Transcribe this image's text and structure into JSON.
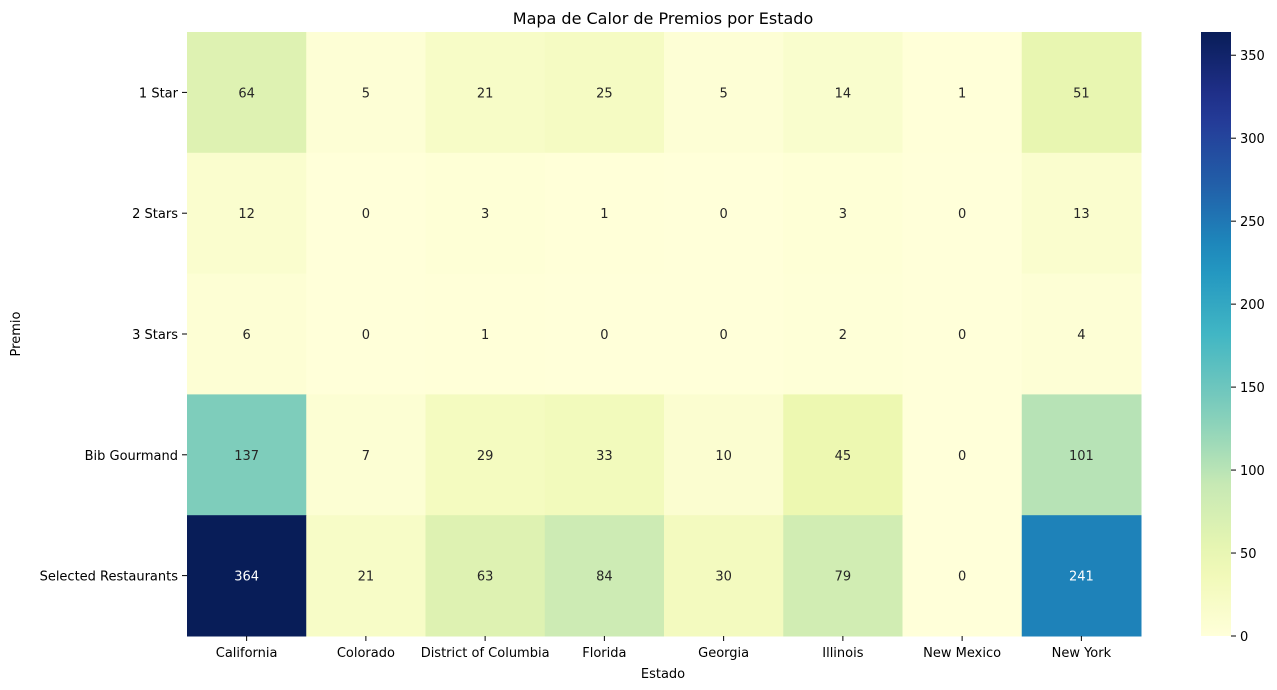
{
  "chart_data": {
    "type": "heatmap",
    "title": "Mapa de Calor de Premios por Estado",
    "xlabel": "Estado",
    "ylabel": "Premio",
    "x_categories": [
      "California",
      "Colorado",
      "District of Columbia",
      "Florida",
      "Georgia",
      "Illinois",
      "New Mexico",
      "New York"
    ],
    "y_categories": [
      "1 Star",
      "2 Stars",
      "3 Stars",
      "Bib Gourmand",
      "Selected Restaurants"
    ],
    "values": [
      [
        64,
        5,
        21,
        25,
        5,
        14,
        1,
        51
      ],
      [
        12,
        0,
        3,
        1,
        0,
        3,
        0,
        13
      ],
      [
        6,
        0,
        1,
        0,
        0,
        2,
        0,
        4
      ],
      [
        137,
        7,
        29,
        33,
        10,
        45,
        0,
        101
      ],
      [
        364,
        21,
        63,
        84,
        30,
        79,
        0,
        241
      ]
    ],
    "colormap": "YlGnBu",
    "colorbar": {
      "min": 0,
      "max": 364,
      "ticks": [
        0,
        50,
        100,
        150,
        200,
        250,
        300,
        350
      ]
    },
    "annotations": true
  }
}
